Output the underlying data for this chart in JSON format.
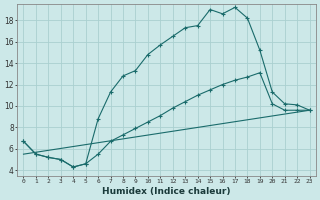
{
  "xlabel": "Humidex (Indice chaleur)",
  "bg_color": "#cce8e8",
  "grid_color": "#aad0d0",
  "line_color": "#1a6b6b",
  "xlim": [
    -0.5,
    23.5
  ],
  "ylim": [
    3.5,
    19.5
  ],
  "xticks": [
    0,
    1,
    2,
    3,
    4,
    5,
    6,
    7,
    8,
    9,
    10,
    11,
    12,
    13,
    14,
    15,
    16,
    17,
    18,
    19,
    20,
    21,
    22,
    23
  ],
  "yticks": [
    4,
    6,
    8,
    10,
    12,
    14,
    16,
    18
  ],
  "line1_x": [
    0,
    1,
    2,
    3,
    4,
    5,
    6,
    7,
    8,
    9,
    10,
    11,
    12,
    13,
    14,
    15,
    16,
    17,
    18,
    19,
    20,
    21,
    22,
    23
  ],
  "line1_y": [
    6.7,
    5.5,
    5.2,
    5.0,
    4.3,
    4.6,
    8.8,
    11.3,
    12.8,
    13.3,
    14.8,
    15.7,
    16.5,
    17.3,
    17.5,
    19.0,
    18.6,
    19.2,
    18.2,
    15.2,
    11.3,
    10.2,
    10.1,
    9.6
  ],
  "line2_x": [
    0,
    1,
    2,
    3,
    4,
    5,
    6,
    7,
    8,
    9,
    10,
    11,
    12,
    13,
    14,
    15,
    16,
    17,
    18,
    19,
    20,
    21,
    22,
    23
  ],
  "line2_y": [
    6.7,
    5.5,
    5.2,
    5.0,
    4.3,
    4.6,
    5.5,
    6.7,
    7.3,
    7.9,
    8.5,
    9.1,
    9.8,
    10.4,
    11.0,
    11.5,
    12.0,
    12.4,
    12.7,
    13.1,
    10.2,
    9.6,
    9.6,
    9.6
  ],
  "line3_x": [
    0,
    23
  ],
  "line3_y": [
    5.5,
    9.6
  ]
}
